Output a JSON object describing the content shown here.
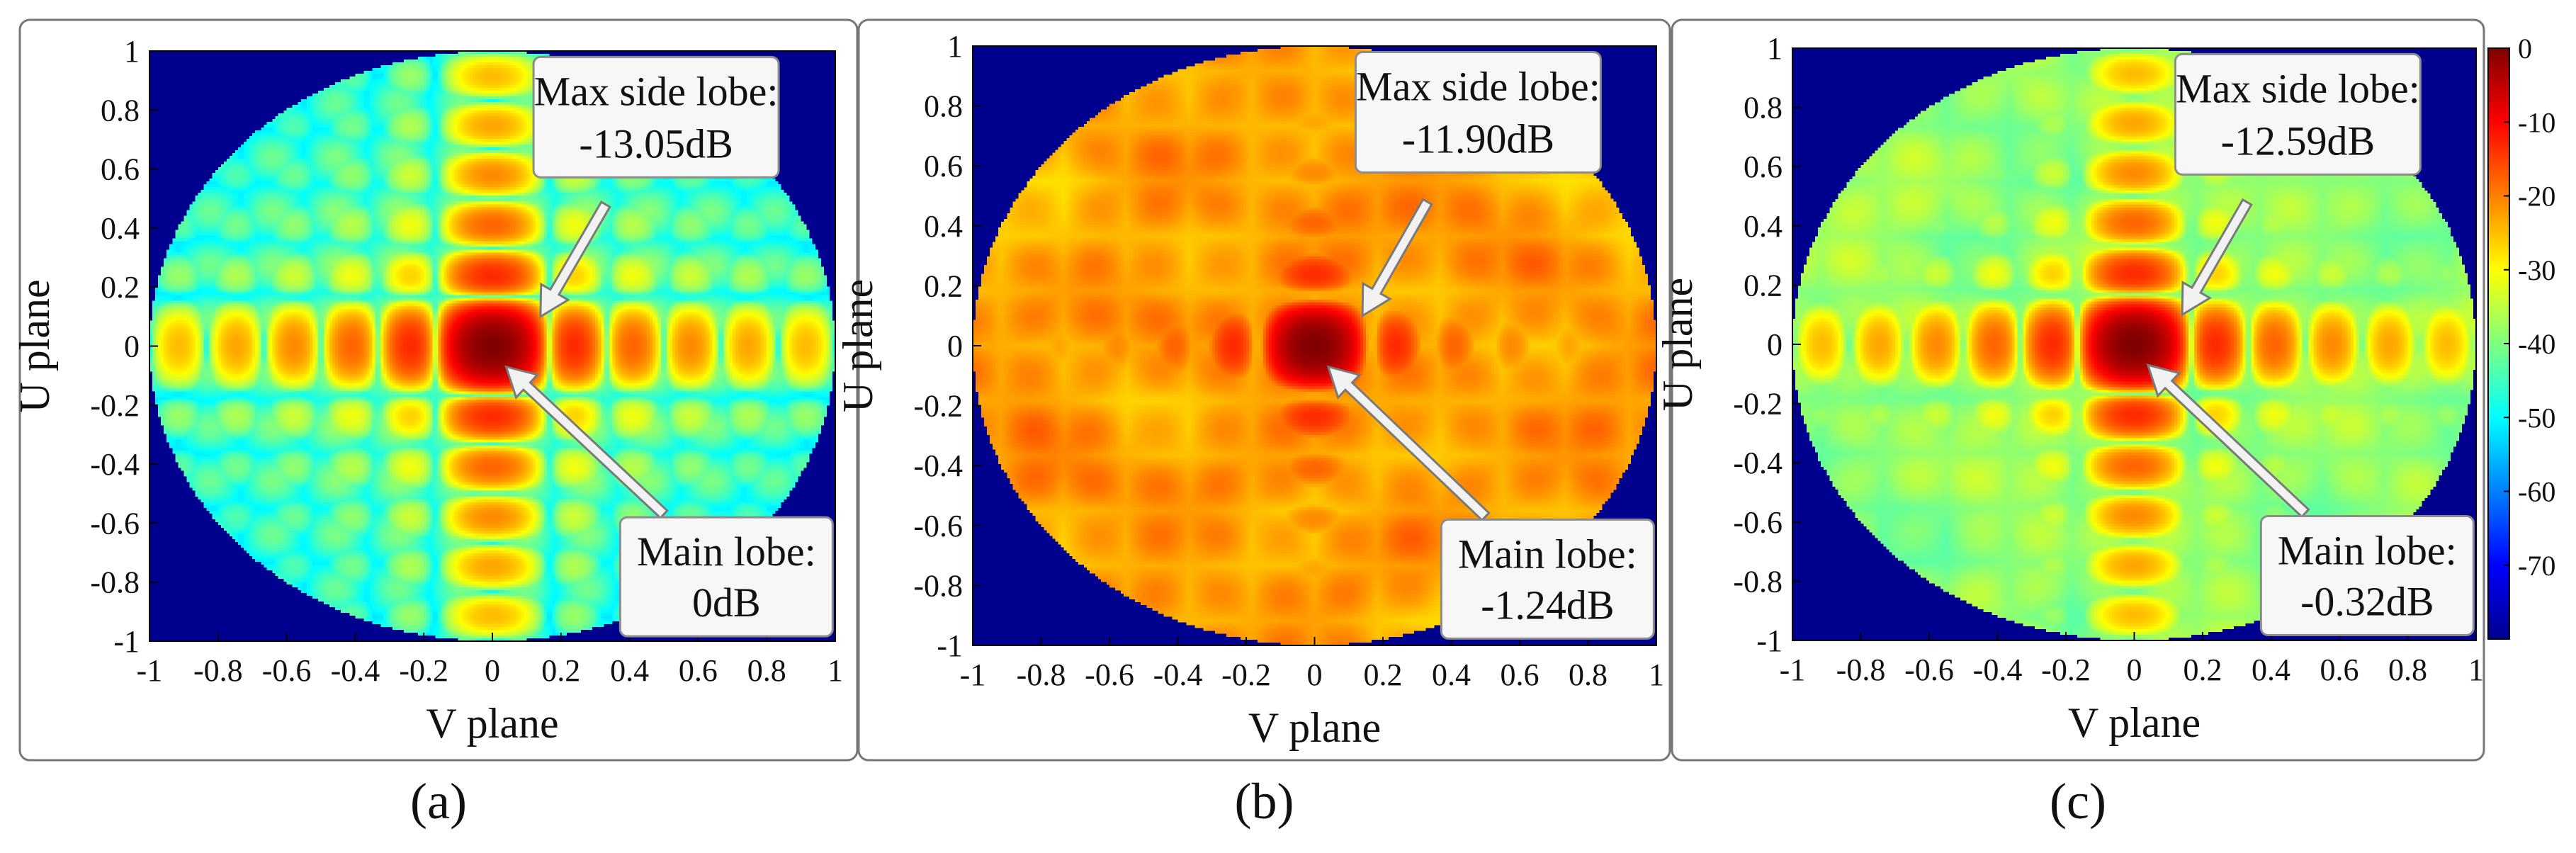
{
  "chart_data": {
    "type": "heatmap",
    "description_of_values": "Normalized beam pattern (dB) over the U-V plane, three array configurations",
    "colorbar": {
      "range": [
        -80,
        0
      ],
      "ticks": [
        0,
        -10,
        -20,
        -30,
        -40,
        -50,
        -60,
        -70
      ],
      "tick_labels": [
        "0",
        "-10",
        "-20",
        "-30",
        "-40",
        "-50",
        "-60",
        "-70"
      ],
      "colormap": "jet"
    },
    "panels": [
      {
        "label": "(a)",
        "xlabel": "V plane",
        "ylabel": "U plane",
        "xlim": [
          -1,
          1
        ],
        "ylim": [
          -1,
          1
        ],
        "xticks": [
          "-1",
          "-0.8",
          "-0.6",
          "-0.4",
          "-0.2",
          "0",
          "0.2",
          "0.4",
          "0.6",
          "0.8",
          "1"
        ],
        "yticks": [
          "1",
          "0.8",
          "0.6",
          "0.4",
          "0.2",
          "0",
          "-0.2",
          "-0.4",
          "-0.6",
          "-0.8",
          "-1"
        ],
        "max_side_lobe_label": "Max side lobe:",
        "max_side_lobe_value": "-13.05dB",
        "max_side_lobe_db": -13.05,
        "main_lobe_label": "Main lobe:",
        "main_lobe_value": "0dB",
        "main_lobe_db": 0,
        "pattern": "regular"
      },
      {
        "label": "(b)",
        "xlabel": "V plane",
        "ylabel": "U plane",
        "xlim": [
          -1,
          1
        ],
        "ylim": [
          -1,
          1
        ],
        "xticks": [
          "-1",
          "-0.8",
          "-0.6",
          "-0.4",
          "-0.2",
          "0",
          "0.2",
          "0.4",
          "0.6",
          "0.8",
          "1"
        ],
        "yticks": [
          "1",
          "0.8",
          "0.6",
          "0.4",
          "0.2",
          "0",
          "-0.2",
          "-0.4",
          "-0.6",
          "-0.8",
          "-1"
        ],
        "max_side_lobe_label": "Max side lobe:",
        "max_side_lobe_value": "-11.90dB",
        "max_side_lobe_db": -11.9,
        "main_lobe_label": "Main lobe:",
        "main_lobe_value": "-1.24dB",
        "main_lobe_db": -1.24,
        "pattern": "strong-random"
      },
      {
        "label": "(c)",
        "xlabel": "V plane",
        "ylabel": "U plane",
        "xlim": [
          -1,
          1
        ],
        "ylim": [
          -1,
          1
        ],
        "xticks": [
          "-1",
          "-0.8",
          "-0.6",
          "-0.4",
          "-0.2",
          "0",
          "0.2",
          "0.4",
          "0.6",
          "0.8",
          "1"
        ],
        "yticks": [
          "1",
          "0.8",
          "0.6",
          "0.4",
          "0.2",
          "0",
          "-0.2",
          "-0.4",
          "-0.6",
          "-0.8",
          "-1"
        ],
        "max_side_lobe_label": "Max side lobe:",
        "max_side_lobe_value": "-12.59dB",
        "max_side_lobe_db": -12.59,
        "main_lobe_label": "Main lobe:",
        "main_lobe_value": "-0.32dB",
        "main_lobe_db": -0.32,
        "pattern": "mild-random"
      }
    ]
  }
}
